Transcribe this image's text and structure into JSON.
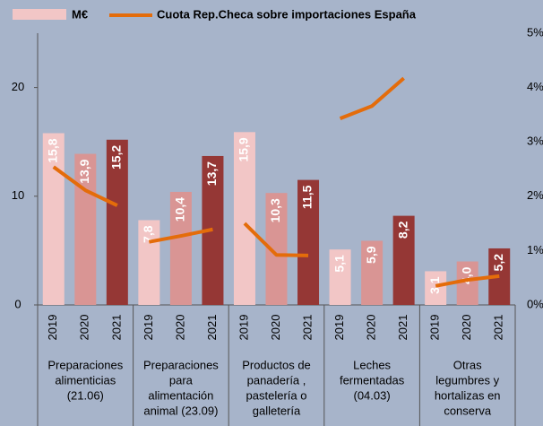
{
  "chart_data": {
    "type": "bar",
    "bar_legend": "M€",
    "bar_legend_color": "#f2c6c6",
    "categories": [
      [
        "Preparaciones",
        "alimenticias",
        "(21.06)"
      ],
      [
        "Preparaciones",
        "para",
        "alimentación",
        "animal (23.09)"
      ],
      [
        "Productos de",
        "panadería ,",
        "pastelería o",
        "galletería"
      ],
      [
        "Leches",
        "fermentadas",
        "(04.03)"
      ],
      [
        "Otras",
        "legumbres y",
        "hortalizas en",
        "conserva"
      ]
    ],
    "series": [
      {
        "name": "2019",
        "color": "#f2c6c6",
        "values": [
          15.8,
          7.8,
          15.9,
          5.1,
          3.1
        ],
        "value_labels": [
          "15,8",
          "7,8",
          "15,9",
          "5,1",
          "3,1"
        ]
      },
      {
        "name": "2020",
        "color": "#d99594",
        "values": [
          13.9,
          10.4,
          10.3,
          5.9,
          4.0
        ],
        "value_labels": [
          "13,9",
          "10,4",
          "10,3",
          "5,9",
          "4,0"
        ]
      },
      {
        "name": "2021",
        "color": "#953735",
        "values": [
          15.2,
          13.7,
          11.5,
          8.2,
          5.2
        ],
        "value_labels": [
          "15,2",
          "13,7",
          "11,5",
          "8,2",
          "5,2"
        ]
      }
    ],
    "share": {
      "name": "Cuota Rep.Checa sobre importaciones España",
      "color": "#e46c0a",
      "axis": "y2",
      "values": [
        [
          2.54,
          2.11,
          1.83
        ],
        [
          1.16,
          1.27,
          1.39
        ],
        [
          1.5,
          0.92,
          0.91
        ],
        [
          3.43,
          3.66,
          4.17
        ],
        [
          0.35,
          0.46,
          0.53
        ]
      ]
    },
    "ylim": [
      0,
      25
    ],
    "yticks": [
      0,
      10,
      20
    ],
    "y2lim": [
      0,
      5
    ],
    "y2ticks": [
      {
        "value": 0,
        "label": "0%"
      },
      {
        "value": 1,
        "label": "1%"
      },
      {
        "value": 2,
        "label": "2%"
      },
      {
        "value": 3,
        "label": "3%"
      },
      {
        "value": 4,
        "label": "4%"
      },
      {
        "value": 5,
        "label": "5%"
      }
    ],
    "grid": false
  }
}
